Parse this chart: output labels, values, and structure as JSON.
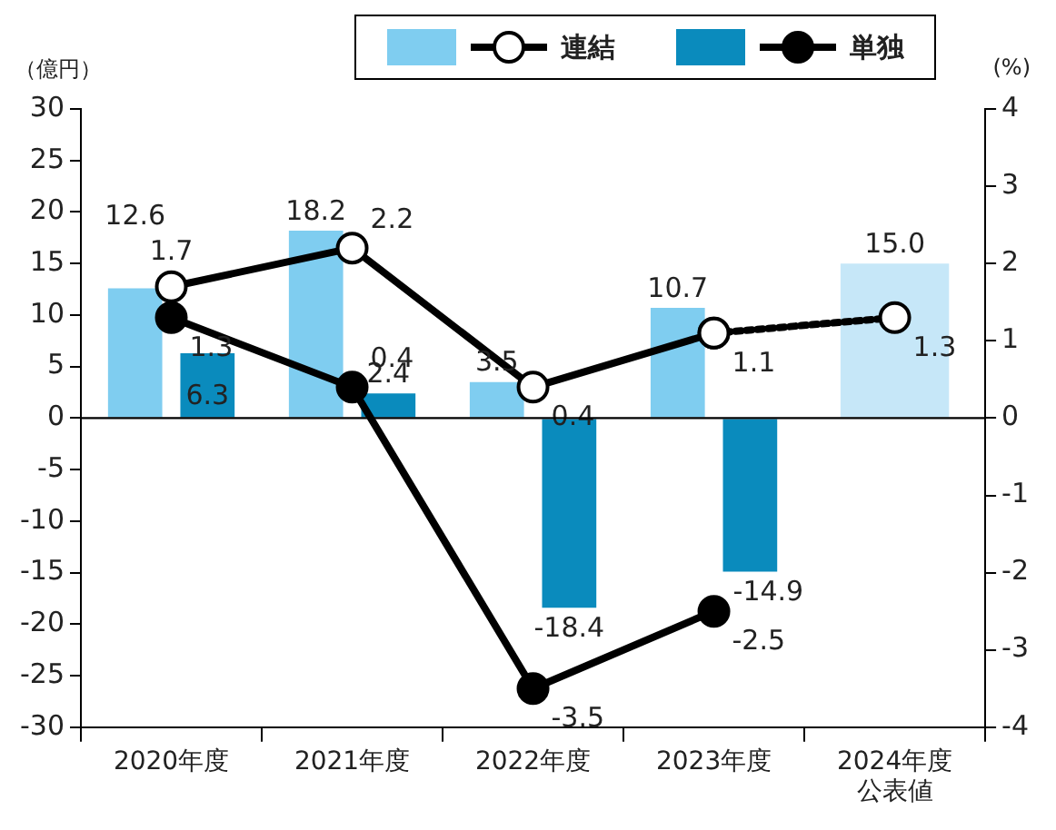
{
  "chart_data": {
    "type": "bar",
    "categories": [
      "2020年度",
      "2021年度",
      "2022年度",
      "2023年度",
      "2024年度公表値"
    ],
    "ylabel": "（億円）",
    "y2label": "(%)",
    "series": [
      {
        "colors": [
          "#7fcdf0",
          "#7fcdf0",
          "#7fcdf0",
          "#7fcdf0",
          "#c6e7f8"
        ],
        "values": [
          12.6,
          18.2,
          3.5,
          10.7,
          15.0
        ],
        "value_labels": [
          "12.6",
          "18.2",
          "3.5",
          "10.7",
          "15.0"
        ]
      },
      {
        "color": "#0a8bbd",
        "values": [
          6.3,
          2.4,
          -18.4,
          -14.9,
          null
        ],
        "value_labels": [
          "6.3",
          "2.4",
          "-18.4",
          "-14.9",
          null
        ]
      },
      {
        "name": "連結",
        "type": "line",
        "axis": "y2",
        "color": "#000000",
        "marker": "circle",
        "line_style": "solid",
        "values": [
          1.7,
          2.2,
          0.4,
          1.1,
          null
        ],
        "value_labels": [
          "1.7",
          "2.2",
          "0.4",
          "1.1",
          null
        ]
      },
      {
        "type": "line",
        "axis": "y2",
        "color": "#000000",
        "marker": "circle",
        "line_style": "dotted",
        "values": [
          null,
          null,
          null,
          1.1,
          1.3
        ],
        "value_labels": [
          null,
          null,
          null,
          null,
          "1.3"
        ]
      },
      {
        "name": "単独",
        "type": "line",
        "axis": "y2",
        "color": "#000000",
        "marker": "filled_circle",
        "line_style": "solid",
        "values": [
          1.3,
          0.4,
          -3.5,
          -2.5,
          null
        ],
        "value_labels": [
          "1.3",
          "0.4",
          "-3.5",
          "-2.5",
          null
        ]
      }
    ],
    "ylim": [
      -30,
      30
    ],
    "yticks": [
      -30,
      -25,
      -20,
      -15,
      -10,
      -5,
      0,
      5,
      10,
      15,
      20,
      25,
      30
    ],
    "y2lim": [
      -4,
      4
    ],
    "y2ticks": [
      -4,
      -3,
      -2,
      -1,
      0,
      1,
      2,
      3,
      4
    ],
    "ref_lines": [
      {
        "axis": "y",
        "value": 0,
        "color": "#000000"
      }
    ],
    "grid": false,
    "legend": "top"
  }
}
